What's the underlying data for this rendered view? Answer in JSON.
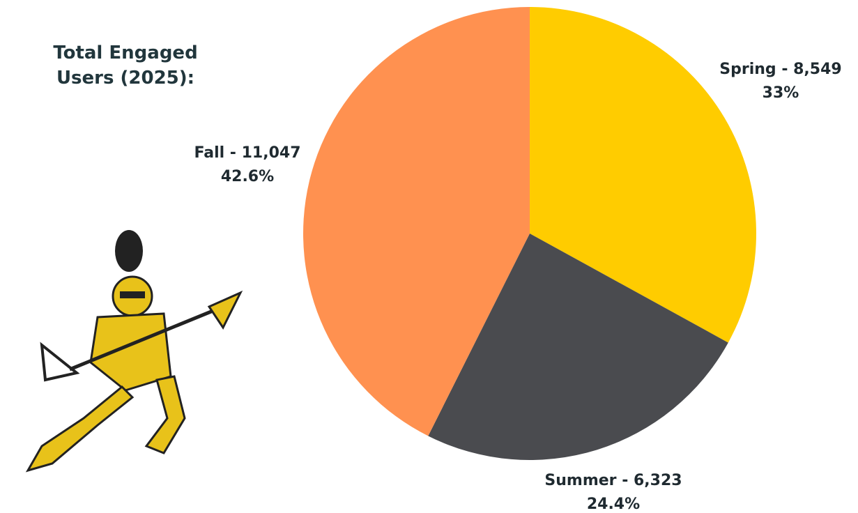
{
  "chart_data": {
    "type": "pie",
    "title": "Total Engaged Users (2025):",
    "categories": [
      "Spring - 8,549",
      "Summer - 6,323",
      "Fall - 11,047"
    ],
    "values": [
      33,
      24.4,
      42.6
    ],
    "value_labels": [
      "33%",
      "24.4%",
      "42.6%"
    ],
    "colors": [
      "#ffcc00",
      "#4a4b4f",
      "#ff9150"
    ]
  }
}
